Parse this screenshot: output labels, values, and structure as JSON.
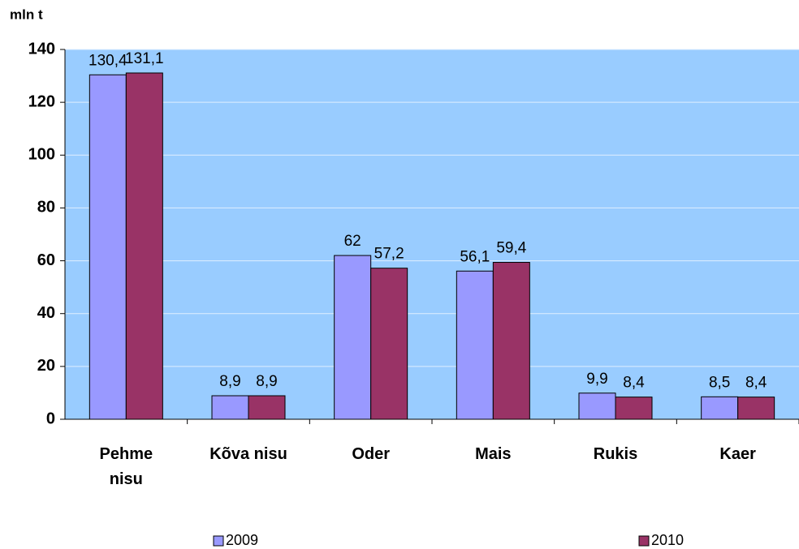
{
  "chart_data": {
    "type": "bar",
    "y_label": "mln t",
    "categories": [
      "Pehme nisu",
      "Kõva nisu",
      "Oder",
      "Mais",
      "Rukis",
      "Kaer"
    ],
    "series": [
      {
        "name": "2009",
        "color": "#9999ff",
        "values": [
          130.4,
          8.9,
          62,
          56.1,
          9.9,
          8.5
        ],
        "value_labels": [
          "130,4",
          "8,9",
          "62",
          "56,1",
          "9,9",
          "8,5"
        ]
      },
      {
        "name": "2010",
        "color": "#993366",
        "values": [
          131.1,
          8.9,
          57.2,
          59.4,
          8.4,
          8.4
        ],
        "value_labels": [
          "131,1",
          "8,9",
          "57,2",
          "59,4",
          "8,4",
          "8,4"
        ]
      }
    ],
    "ylim": [
      0,
      140
    ],
    "yticks": [
      0,
      20,
      40,
      60,
      80,
      100,
      120,
      140
    ],
    "grid": true,
    "plot_background": "#99ccff",
    "legend": "bottom"
  }
}
